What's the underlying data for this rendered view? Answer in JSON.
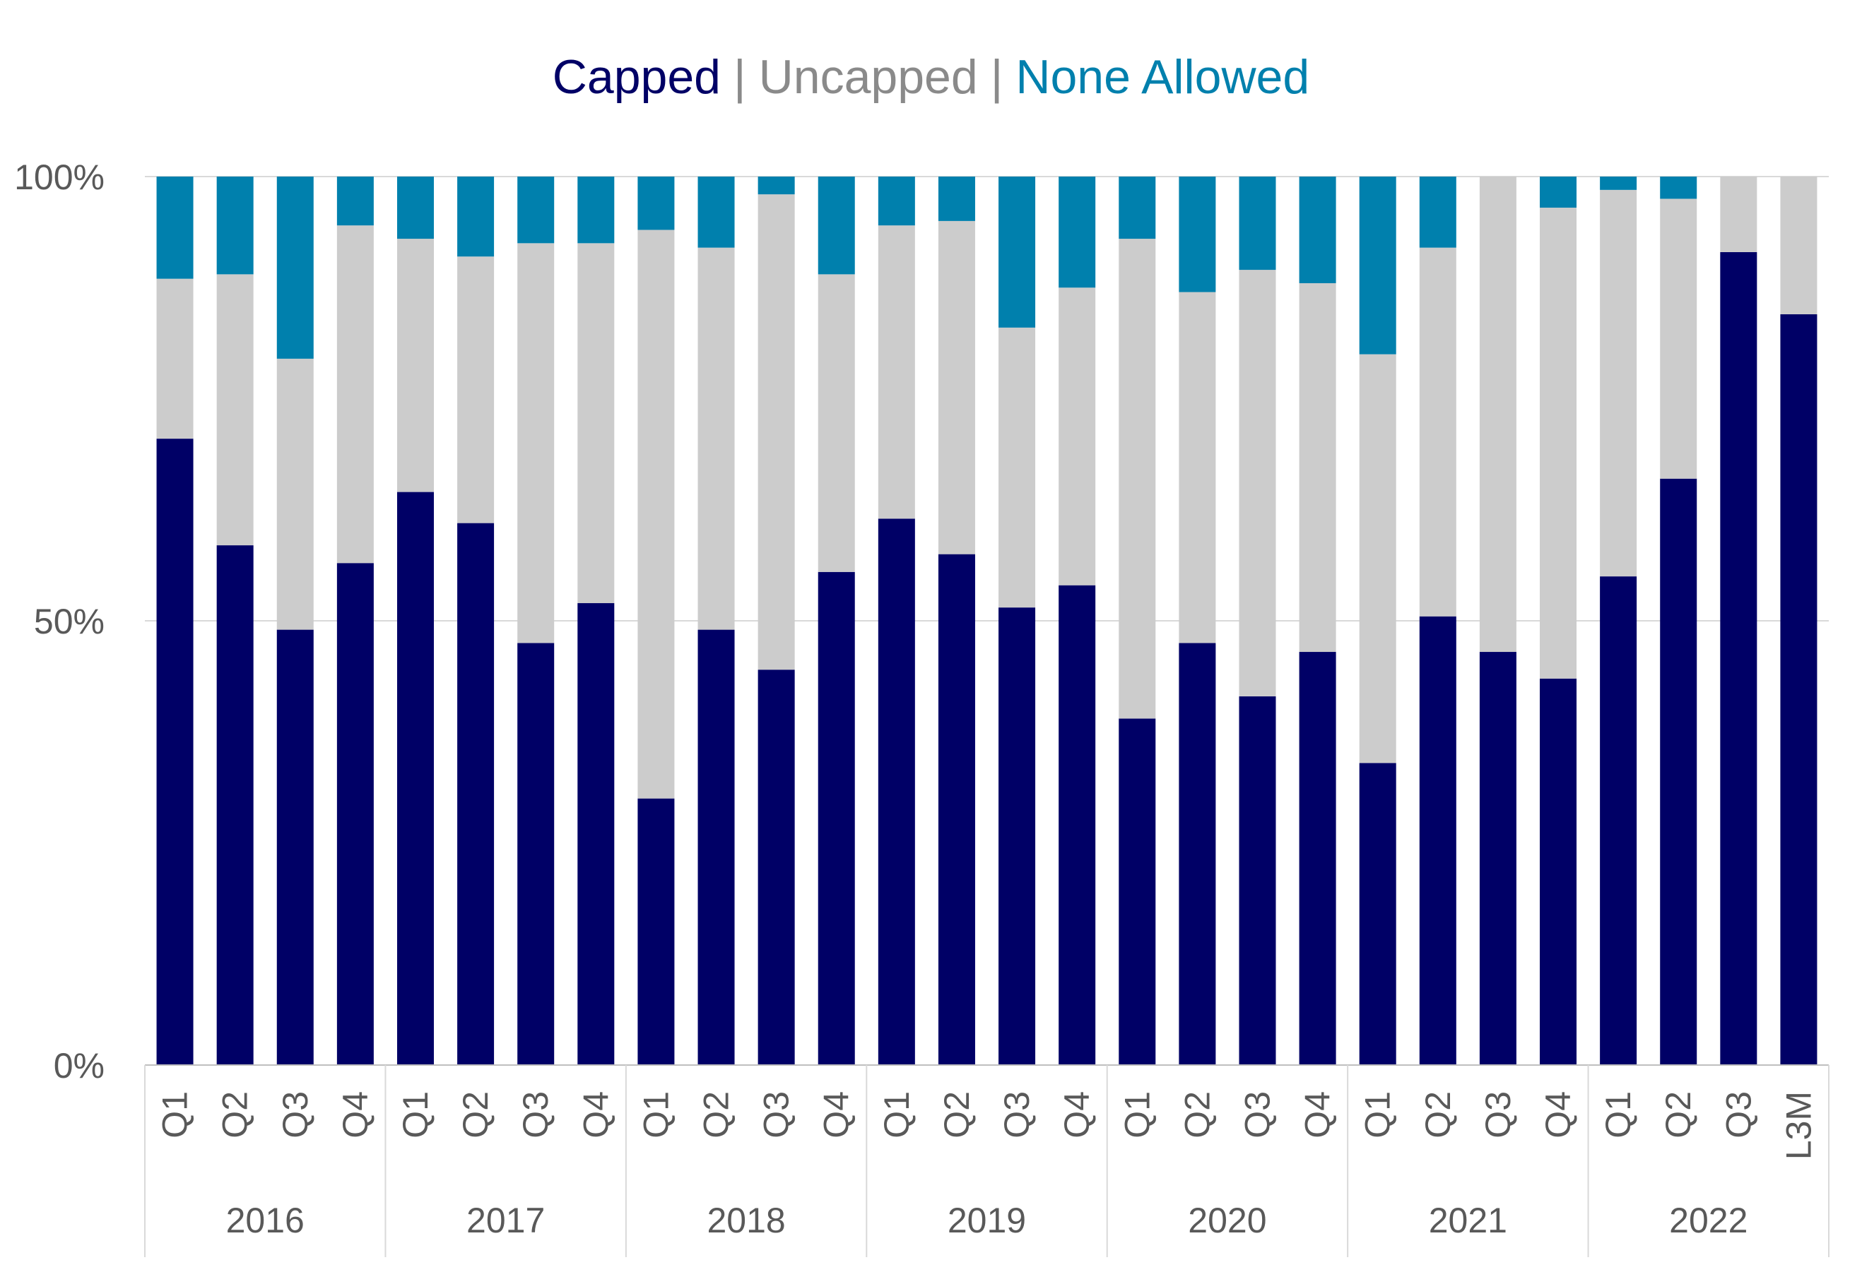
{
  "legend": {
    "capped": "Capped",
    "uncapped": "Uncapped",
    "none_allowed": "None Allowed",
    "separator": "|"
  },
  "colors": {
    "capped": "#000066",
    "uncapped": "#cccccc",
    "none_allowed": "#0080ad",
    "grid": "#d9d9d9",
    "axis_text": "#595959"
  },
  "chart_data": {
    "type": "bar",
    "stacked": true,
    "percent": true,
    "ylim": [
      0,
      100
    ],
    "y_ticks": [
      "0%",
      "50%",
      "100%"
    ],
    "y_tick_values": [
      0,
      50,
      100
    ],
    "grid": true,
    "legend_position": "top",
    "categories": [
      "Q1",
      "Q2",
      "Q3",
      "Q4",
      "Q1",
      "Q2",
      "Q3",
      "Q4",
      "Q1",
      "Q2",
      "Q3",
      "Q4",
      "Q1",
      "Q2",
      "Q3",
      "Q4",
      "Q1",
      "Q2",
      "Q3",
      "Q4",
      "Q1",
      "Q2",
      "Q3",
      "Q4",
      "Q1",
      "Q2",
      "Q3",
      "L3M"
    ],
    "groups": [
      {
        "label": "2016",
        "count": 4
      },
      {
        "label": "2017",
        "count": 4
      },
      {
        "label": "2018",
        "count": 4
      },
      {
        "label": "2019",
        "count": 4
      },
      {
        "label": "2020",
        "count": 4
      },
      {
        "label": "2021",
        "count": 4
      },
      {
        "label": "2022",
        "count": 4
      }
    ],
    "series": [
      {
        "name": "Capped",
        "key": "capped",
        "values": [
          70.5,
          58.5,
          49,
          56.5,
          64.5,
          61,
          47.5,
          52,
          30,
          49,
          44.5,
          55.5,
          61.5,
          57.5,
          51.5,
          54,
          39,
          47.5,
          41.5,
          46.5,
          34,
          50.5,
          46.5,
          43.5,
          55,
          66,
          91.5,
          84.5
        ]
      },
      {
        "name": "Uncapped",
        "key": "uncapped",
        "values": [
          18,
          30.5,
          30.5,
          38,
          28.5,
          30,
          45,
          40.5,
          64,
          43,
          53.5,
          33.5,
          33,
          37.5,
          31.5,
          33.5,
          54,
          39.5,
          48,
          41.5,
          46,
          41.5,
          53.5,
          53,
          43.5,
          31.5,
          8.5,
          15.5
        ]
      },
      {
        "name": "None Allowed",
        "key": "none_allowed",
        "values": [
          11.5,
          11,
          20.5,
          5.5,
          7,
          9,
          7.5,
          7.5,
          6,
          8,
          2,
          11,
          5.5,
          5,
          17,
          12.5,
          7,
          13,
          10.5,
          12,
          20,
          8,
          0,
          3.5,
          1.5,
          2.5,
          0,
          0
        ]
      }
    ]
  }
}
